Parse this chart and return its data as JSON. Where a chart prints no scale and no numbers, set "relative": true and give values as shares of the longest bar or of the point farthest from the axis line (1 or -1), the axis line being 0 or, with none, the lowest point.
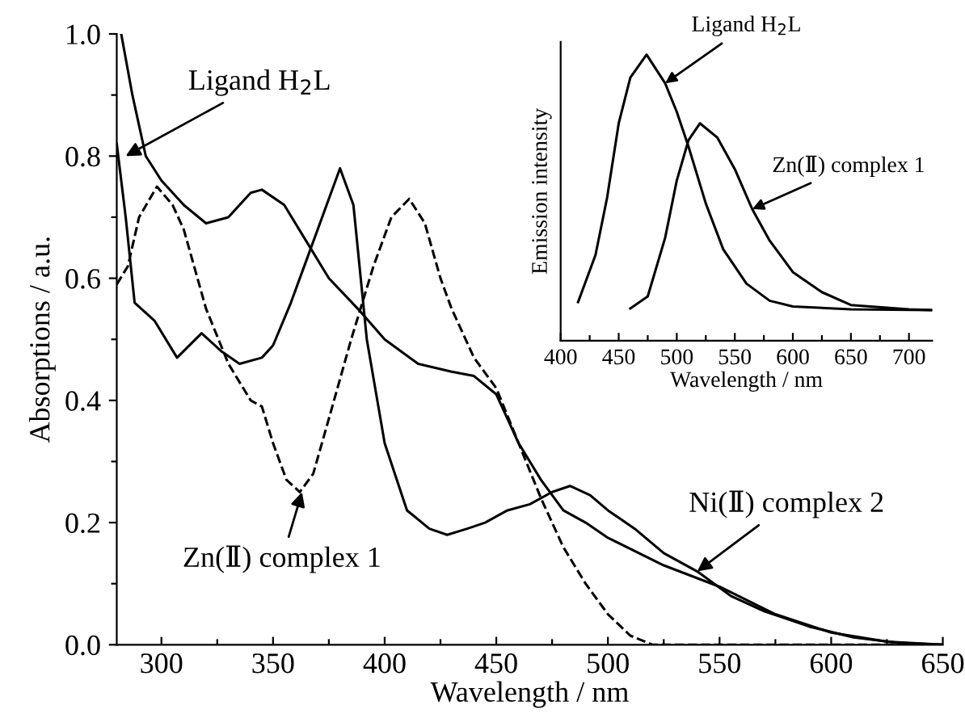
{
  "chart_data": [
    {
      "type": "line",
      "xlabel": "Wavelength / nm",
      "ylabel": "Absorptions / a.u.",
      "xlim": [
        280,
        650
      ],
      "ylim": [
        0,
        1.0
      ],
      "xticks": [
        300,
        {
          "value": 325,
          "label": null
        },
        350,
        {
          "value": 375,
          "label": null
        },
        400,
        {
          "value": 425,
          "label": null
        },
        450,
        {
          "value": 475,
          "label": null
        },
        500,
        {
          "value": 525,
          "label": null
        },
        550,
        {
          "value": 575,
          "label": null
        },
        600,
        {
          "value": 625,
          "label": null
        },
        650
      ],
      "yticks": [
        {
          "value": 0,
          "label": "0.0"
        },
        {
          "value": 0.1,
          "label": null
        },
        {
          "value": 0.2,
          "label": "0.2"
        },
        {
          "value": 0.3,
          "label": null
        },
        {
          "value": 0.4,
          "label": "0.4"
        },
        {
          "value": 0.5,
          "label": null
        },
        {
          "value": 0.6,
          "label": "0.6"
        },
        {
          "value": 0.7,
          "label": null
        },
        {
          "value": 0.8,
          "label": "0.8"
        },
        {
          "value": 0.9,
          "label": null
        },
        {
          "value": 1.0,
          "label": "1.0"
        }
      ],
      "grid": false,
      "legend": false,
      "series": [
        {
          "color": "#000000",
          "line_style": "solid",
          "x": [
            282,
            287,
            293,
            300,
            310,
            320,
            330,
            340,
            345,
            355,
            365,
            375,
            388,
            400,
            415,
            430,
            440,
            450,
            460,
            470,
            480,
            490,
            500,
            525,
            550,
            575,
            600,
            625,
            650
          ],
          "values": [
            1.0,
            0.9,
            0.8,
            0.76,
            0.72,
            0.69,
            0.7,
            0.74,
            0.745,
            0.72,
            0.66,
            0.6,
            0.55,
            0.5,
            0.46,
            0.447,
            0.44,
            0.41,
            0.33,
            0.27,
            0.22,
            0.2,
            0.175,
            0.13,
            0.095,
            0.05,
            0.02,
            0.005,
            0.0
          ]
        },
        {
          "color": "#000000",
          "line_style": "dashed",
          "x": [
            280,
            285,
            290,
            298,
            305,
            310,
            320,
            330,
            340,
            345,
            350,
            356,
            362,
            368,
            375,
            385,
            395,
            403,
            411,
            418,
            425,
            430,
            440,
            450,
            460,
            470,
            480,
            490,
            500,
            510,
            520,
            550,
            650
          ],
          "values": [
            0.59,
            0.62,
            0.7,
            0.75,
            0.72,
            0.68,
            0.55,
            0.46,
            0.4,
            0.39,
            0.33,
            0.27,
            0.25,
            0.28,
            0.37,
            0.5,
            0.62,
            0.7,
            0.73,
            0.69,
            0.6,
            0.55,
            0.47,
            0.42,
            0.33,
            0.24,
            0.16,
            0.1,
            0.05,
            0.015,
            0.0,
            0.0,
            0.0
          ]
        },
        {
          "color": "#000000",
          "line_style": "solid",
          "x": [
            280,
            284,
            288,
            297,
            307,
            318,
            327,
            335,
            345,
            350,
            358,
            365,
            372,
            380,
            386,
            392,
            400,
            410,
            420,
            428,
            437,
            445,
            455,
            465,
            475,
            483,
            492,
            500,
            512,
            525,
            540,
            555,
            570,
            590,
            610,
            630,
            650
          ],
          "values": [
            0.82,
            0.7,
            0.56,
            0.53,
            0.47,
            0.51,
            0.48,
            0.46,
            0.47,
            0.49,
            0.56,
            0.63,
            0.7,
            0.78,
            0.72,
            0.5,
            0.33,
            0.22,
            0.19,
            0.18,
            0.19,
            0.2,
            0.22,
            0.23,
            0.25,
            0.26,
            0.245,
            0.22,
            0.19,
            0.15,
            0.12,
            0.08,
            0.055,
            0.03,
            0.012,
            0.003,
            0.0
          ]
        }
      ],
      "annotations": [
        {
          "text": "Ligand H$_{2}$L",
          "x": 284,
          "y": 0.8
        },
        {
          "text": "Zn(Ⅱ) complex 1",
          "x": 363,
          "y": 0.25
        },
        {
          "text": "Ni(Ⅱ) complex 2",
          "x": 540,
          "y": 0.12
        }
      ]
    },
    {
      "type": "line",
      "relative": true,
      "xlabel": "Wavelength / nm",
      "ylabel": "Emission intensity",
      "xlim": [
        400,
        720
      ],
      "xticks": [
        400,
        {
          "value": 425,
          "label": null
        },
        450,
        {
          "value": 475,
          "label": null
        },
        500,
        {
          "value": 525,
          "label": null
        },
        550,
        {
          "value": 575,
          "label": null
        },
        600,
        {
          "value": 625,
          "label": null
        },
        650,
        {
          "value": 675,
          "label": null
        },
        700
      ],
      "grid": false,
      "legend": false,
      "series": [
        {
          "color": "#000000",
          "line_style": "solid",
          "x": [
            415,
            430,
            440,
            450,
            460,
            474,
            490,
            500,
            510,
            525,
            540,
            560,
            580,
            600,
            650,
            720
          ],
          "values": [
            0.135,
            0.3,
            0.5,
            0.76,
            0.92,
            1.0,
            0.9,
            0.8,
            0.68,
            0.48,
            0.32,
            0.2,
            0.14,
            0.12,
            0.11,
            0.107
          ]
        },
        {
          "color": "#000000",
          "line_style": "solid",
          "x": [
            460,
            475,
            490,
            500,
            510,
            520,
            535,
            550,
            565,
            580,
            600,
            625,
            650,
            700,
            720
          ],
          "values": [
            0.113,
            0.155,
            0.36,
            0.56,
            0.7,
            0.76,
            0.71,
            0.6,
            0.46,
            0.35,
            0.24,
            0.17,
            0.125,
            0.11,
            0.107
          ]
        }
      ],
      "annotations": [
        {
          "text": "Ligand H$_{2}$L",
          "x": 490,
          "y": 0.9
        },
        {
          "text": "Zn(Ⅱ) complex 1",
          "x": 565,
          "y": 0.46
        }
      ]
    }
  ]
}
